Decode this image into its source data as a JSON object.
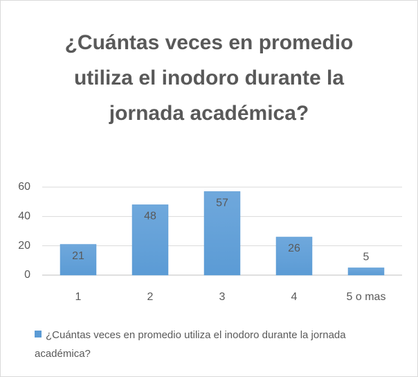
{
  "chart_data": {
    "type": "bar",
    "title": "¿Cuántas veces en promedio utiliza el inodoro durante la jornada académica?",
    "categories": [
      "1",
      "2",
      "3",
      "4",
      "5 o mas"
    ],
    "series": [
      {
        "name": "¿Cuántas veces en promedio utiliza el inodoro durante la jornada académica?",
        "color": "#5b9bd5",
        "values": [
          21,
          48,
          57,
          26,
          5
        ]
      }
    ],
    "ylim": [
      0,
      60
    ],
    "yticks": [
      0,
      20,
      40,
      60
    ],
    "grid": true,
    "legend": "bottom"
  }
}
